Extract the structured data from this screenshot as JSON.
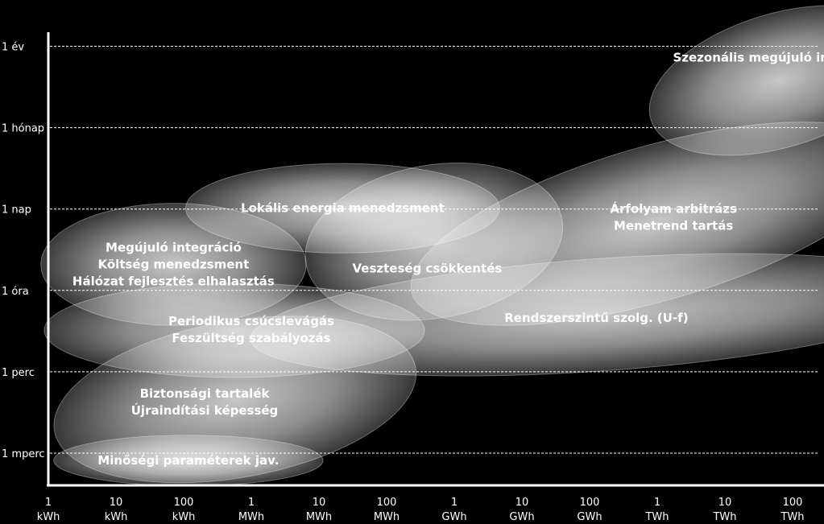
{
  "chart_data": {
    "type": "scatter",
    "x_scale": "log",
    "x_ticks": [
      {
        "value": "1",
        "unit": "kWh"
      },
      {
        "value": "10",
        "unit": "kWh"
      },
      {
        "value": "100",
        "unit": "kWh"
      },
      {
        "value": "1",
        "unit": "MWh"
      },
      {
        "value": "10",
        "unit": "MWh"
      },
      {
        "value": "100",
        "unit": "MWh"
      },
      {
        "value": "1",
        "unit": "GWh"
      },
      {
        "value": "10",
        "unit": "GWh"
      },
      {
        "value": "100",
        "unit": "GWh"
      },
      {
        "value": "1",
        "unit": "TWh"
      },
      {
        "value": "10",
        "unit": "TWh"
      },
      {
        "value": "100",
        "unit": "TWh"
      }
    ],
    "y_ticks": [
      "1 mperc",
      "1 perc",
      "1 óra",
      "1 nap",
      "1 hónap",
      "1 év"
    ],
    "grid": "horizontal-dashed",
    "colors": {
      "background": "#000000",
      "ellipse": "#ffffff",
      "text": "#ffffff",
      "grid": "#ffffff"
    },
    "applications": [
      {
        "lines": [
          "Szezonális megújuló integráció"
        ],
        "cx_decade": 10.8,
        "cy_level": 4.58,
        "rx_decades": 1.98,
        "ry_levels": 0.82,
        "rotate": -17,
        "lx_decade": 10.8,
        "ly_level": 4.86
      },
      {
        "lines": [
          "Árfolyam arbitrázs",
          "Menetrend tartás"
        ],
        "cx_decade": 8.95,
        "cy_level": 2.82,
        "rx_decades": 3.72,
        "ry_levels": 0.95,
        "rotate": -16,
        "lx_decade": 9.24,
        "ly_level": 2.9
      },
      {
        "lines": [
          "Lokális energia menedzsment"
        ],
        "cx_decade": 4.35,
        "cy_level": 3.01,
        "rx_decades": 2.32,
        "ry_levels": 0.55,
        "rotate": 0,
        "lx_decade": 4.35,
        "ly_level": 3.01
      },
      {
        "lines": [
          "Veszteség csökkentés"
        ],
        "cx_decade": 5.7,
        "cy_level": 2.6,
        "rx_decades": 1.92,
        "ry_levels": 0.94,
        "rotate": -10,
        "lx_decade": 5.6,
        "ly_level": 2.27
      },
      {
        "lines": [
          "Megújuló integráció",
          "Költség menedzsment",
          "Hálózat fejlesztés elhalasztás"
        ],
        "cx_decade": 1.85,
        "cy_level": 2.32,
        "rx_decades": 1.96,
        "ry_levels": 0.75,
        "rotate": 0,
        "lx_decade": 1.85,
        "ly_level": 2.32
      },
      {
        "lines": [
          "Periodikus csúcslevágás",
          "Feszültség szabályozás"
        ],
        "cx_decade": 2.75,
        "cy_level": 1.51,
        "rx_decades": 2.81,
        "ry_levels": 0.58,
        "rotate": 0,
        "lx_decade": 3.0,
        "ly_level": 1.52
      },
      {
        "lines": [
          "Rendszerszintű szolg. (U-f)"
        ],
        "cx_decade": 8.15,
        "cy_level": 1.7,
        "rx_decades": 5.17,
        "ry_levels": 0.69,
        "rotate": -4,
        "lx_decade": 8.1,
        "ly_level": 1.66
      },
      {
        "lines": [
          "Biztonsági tartalék",
          "Újraindítási képesség"
        ],
        "cx_decade": 2.76,
        "cy_level": 0.66,
        "rx_decades": 2.71,
        "ry_levels": 0.96,
        "rotate": -10,
        "lx_decade": 2.31,
        "ly_level": 0.63
      },
      {
        "lines": [
          "Minőségi paraméterek jav."
        ],
        "cx_decade": 2.07,
        "cy_level": -0.09,
        "rx_decades": 1.99,
        "ry_levels": 0.31,
        "rotate": 0,
        "lx_decade": 2.07,
        "ly_level": -0.09
      }
    ]
  }
}
